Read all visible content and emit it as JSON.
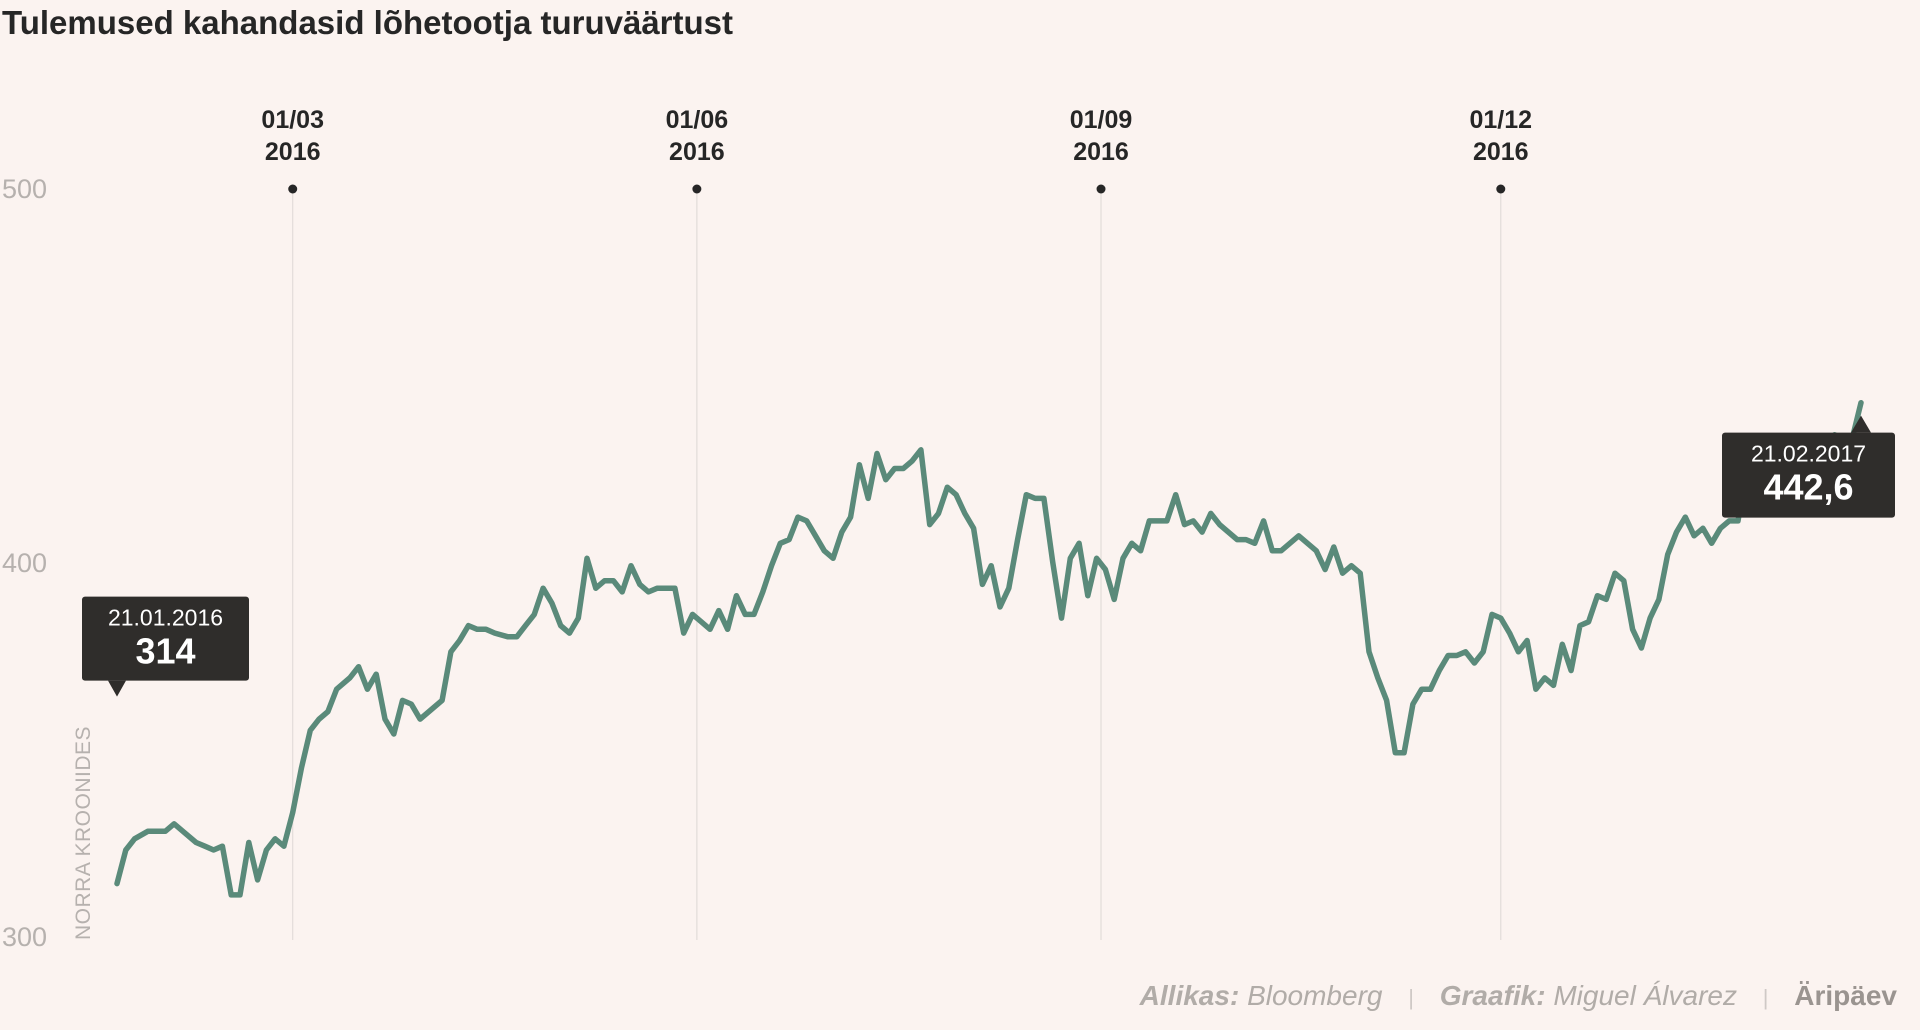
{
  "title": "Tulemused kahandasid lõhetootja turuväärtust",
  "footer": {
    "source_label": "Allikas:",
    "source_value": "Bloomberg",
    "graphic_label": "Graafik:",
    "graphic_value": "Miguel Álvarez",
    "brand": "Äripäev"
  },
  "colors": {
    "background": "#fbf3f0",
    "line": "#5a8a7a",
    "callout": "#2f2d2b",
    "gridline": "#e2dcd9"
  },
  "chart_data": {
    "type": "line",
    "title": "Tulemused kahandasid lõhetootja turuväärtust",
    "xlabel": "",
    "ylabel": "NORRA KROONIDES",
    "ylim": [
      300,
      500
    ],
    "yticks": [
      {
        "value": 500,
        "label": "500"
      },
      {
        "value": 400,
        "label": "400"
      },
      {
        "value": 300,
        "label": "300"
      }
    ],
    "xticks": [
      {
        "date": "2016-03-01",
        "label_top": "01/03",
        "label_bottom": "2016"
      },
      {
        "date": "2016-06-01",
        "label_top": "01/06",
        "label_bottom": "2016"
      },
      {
        "date": "2016-09-01",
        "label_top": "01/09",
        "label_bottom": "2016"
      },
      {
        "date": "2016-12-01",
        "label_top": "01/12",
        "label_bottom": "2016"
      }
    ],
    "xlim": [
      "2016-01-21",
      "2017-02-21"
    ],
    "grid": "vertical at x ticks",
    "series": [
      {
        "values": [
          [
            "2016-01-21",
            314
          ],
          [
            "2016-01-23",
            323
          ],
          [
            "2016-01-25",
            326
          ],
          [
            "2016-01-28",
            328
          ],
          [
            "2016-02-01",
            328
          ],
          [
            "2016-02-03",
            330
          ],
          [
            "2016-02-05",
            328
          ],
          [
            "2016-02-08",
            325
          ],
          [
            "2016-02-10",
            324
          ],
          [
            "2016-02-12",
            323
          ],
          [
            "2016-02-14",
            324
          ],
          [
            "2016-02-16",
            311
          ],
          [
            "2016-02-18",
            311
          ],
          [
            "2016-02-20",
            325
          ],
          [
            "2016-02-22",
            315
          ],
          [
            "2016-02-24",
            323
          ],
          [
            "2016-02-26",
            326
          ],
          [
            "2016-02-28",
            324
          ],
          [
            "2016-03-01",
            333
          ],
          [
            "2016-03-03",
            345
          ],
          [
            "2016-03-05",
            355
          ],
          [
            "2016-03-07",
            358
          ],
          [
            "2016-03-09",
            360
          ],
          [
            "2016-03-11",
            366
          ],
          [
            "2016-03-14",
            369
          ],
          [
            "2016-03-16",
            372
          ],
          [
            "2016-03-18",
            366
          ],
          [
            "2016-03-20",
            370
          ],
          [
            "2016-03-22",
            358
          ],
          [
            "2016-03-24",
            354
          ],
          [
            "2016-03-26",
            363
          ],
          [
            "2016-03-28",
            362
          ],
          [
            "2016-03-30",
            358
          ],
          [
            "2016-04-01",
            360
          ],
          [
            "2016-04-04",
            363
          ],
          [
            "2016-04-06",
            376
          ],
          [
            "2016-04-08",
            379
          ],
          [
            "2016-04-10",
            383
          ],
          [
            "2016-04-12",
            382
          ],
          [
            "2016-04-14",
            382
          ],
          [
            "2016-04-16",
            381
          ],
          [
            "2016-04-19",
            380
          ],
          [
            "2016-04-21",
            380
          ],
          [
            "2016-04-23",
            383
          ],
          [
            "2016-04-25",
            386
          ],
          [
            "2016-04-27",
            393
          ],
          [
            "2016-04-29",
            389
          ],
          [
            "2016-05-01",
            383
          ],
          [
            "2016-05-03",
            381
          ],
          [
            "2016-05-05",
            385
          ],
          [
            "2016-05-07",
            401
          ],
          [
            "2016-05-09",
            393
          ],
          [
            "2016-05-11",
            395
          ],
          [
            "2016-05-13",
            395
          ],
          [
            "2016-05-15",
            392
          ],
          [
            "2016-05-17",
            399
          ],
          [
            "2016-05-19",
            394
          ],
          [
            "2016-05-21",
            392
          ],
          [
            "2016-05-23",
            393
          ],
          [
            "2016-05-25",
            393
          ],
          [
            "2016-05-27",
            393
          ],
          [
            "2016-05-29",
            381
          ],
          [
            "2016-05-31",
            386
          ],
          [
            "2016-06-02",
            384
          ],
          [
            "2016-06-04",
            382
          ],
          [
            "2016-06-06",
            387
          ],
          [
            "2016-06-08",
            382
          ],
          [
            "2016-06-10",
            391
          ],
          [
            "2016-06-12",
            386
          ],
          [
            "2016-06-14",
            386
          ],
          [
            "2016-06-16",
            392
          ],
          [
            "2016-06-18",
            399
          ],
          [
            "2016-06-20",
            405
          ],
          [
            "2016-06-22",
            406
          ],
          [
            "2016-06-24",
            412
          ],
          [
            "2016-06-26",
            411
          ],
          [
            "2016-06-28",
            407
          ],
          [
            "2016-06-30",
            403
          ],
          [
            "2016-07-02",
            401
          ],
          [
            "2016-07-04",
            408
          ],
          [
            "2016-07-06",
            412
          ],
          [
            "2016-07-08",
            426
          ],
          [
            "2016-07-10",
            417
          ],
          [
            "2016-07-12",
            429
          ],
          [
            "2016-07-14",
            422
          ],
          [
            "2016-07-16",
            425
          ],
          [
            "2016-07-18",
            425
          ],
          [
            "2016-07-20",
            427
          ],
          [
            "2016-07-22",
            430
          ],
          [
            "2016-07-24",
            410
          ],
          [
            "2016-07-26",
            413
          ],
          [
            "2016-07-28",
            420
          ],
          [
            "2016-07-30",
            418
          ],
          [
            "2016-08-01",
            413
          ],
          [
            "2016-08-03",
            409
          ],
          [
            "2016-08-05",
            394
          ],
          [
            "2016-08-07",
            399
          ],
          [
            "2016-08-09",
            388
          ],
          [
            "2016-08-11",
            393
          ],
          [
            "2016-08-13",
            406
          ],
          [
            "2016-08-15",
            418
          ],
          [
            "2016-08-17",
            417
          ],
          [
            "2016-08-19",
            417
          ],
          [
            "2016-08-21",
            400
          ],
          [
            "2016-08-23",
            385
          ],
          [
            "2016-08-25",
            401
          ],
          [
            "2016-08-27",
            405
          ],
          [
            "2016-08-29",
            391
          ],
          [
            "2016-08-31",
            401
          ],
          [
            "2016-09-02",
            398
          ],
          [
            "2016-09-04",
            390
          ],
          [
            "2016-09-06",
            401
          ],
          [
            "2016-09-08",
            405
          ],
          [
            "2016-09-10",
            403
          ],
          [
            "2016-09-12",
            411
          ],
          [
            "2016-09-14",
            411
          ],
          [
            "2016-09-16",
            411
          ],
          [
            "2016-09-18",
            418
          ],
          [
            "2016-09-20",
            410
          ],
          [
            "2016-09-22",
            411
          ],
          [
            "2016-09-24",
            408
          ],
          [
            "2016-09-26",
            413
          ],
          [
            "2016-09-28",
            410
          ],
          [
            "2016-09-30",
            408
          ],
          [
            "2016-10-02",
            406
          ],
          [
            "2016-10-04",
            406
          ],
          [
            "2016-10-06",
            405
          ],
          [
            "2016-10-08",
            411
          ],
          [
            "2016-10-10",
            403
          ],
          [
            "2016-10-12",
            403
          ],
          [
            "2016-10-14",
            405
          ],
          [
            "2016-10-16",
            407
          ],
          [
            "2016-10-18",
            405
          ],
          [
            "2016-10-20",
            403
          ],
          [
            "2016-10-22",
            398
          ],
          [
            "2016-10-24",
            404
          ],
          [
            "2016-10-26",
            397
          ],
          [
            "2016-10-28",
            399
          ],
          [
            "2016-10-30",
            397
          ],
          [
            "2016-11-01",
            376
          ],
          [
            "2016-11-03",
            369
          ],
          [
            "2016-11-05",
            363
          ],
          [
            "2016-11-07",
            349
          ],
          [
            "2016-11-09",
            349
          ],
          [
            "2016-11-11",
            362
          ],
          [
            "2016-11-13",
            366
          ],
          [
            "2016-11-15",
            366
          ],
          [
            "2016-11-17",
            371
          ],
          [
            "2016-11-19",
            375
          ],
          [
            "2016-11-21",
            375
          ],
          [
            "2016-11-23",
            376
          ],
          [
            "2016-11-25",
            373
          ],
          [
            "2016-11-27",
            376
          ],
          [
            "2016-11-29",
            386
          ],
          [
            "2016-12-01",
            385
          ],
          [
            "2016-12-03",
            381
          ],
          [
            "2016-12-05",
            376
          ],
          [
            "2016-12-07",
            379
          ],
          [
            "2016-12-09",
            366
          ],
          [
            "2016-12-11",
            369
          ],
          [
            "2016-12-13",
            367
          ],
          [
            "2016-12-15",
            378
          ],
          [
            "2016-12-17",
            371
          ],
          [
            "2016-12-19",
            383
          ],
          [
            "2016-12-21",
            384
          ],
          [
            "2016-12-23",
            391
          ],
          [
            "2016-12-25",
            390
          ],
          [
            "2016-12-27",
            397
          ],
          [
            "2016-12-29",
            395
          ],
          [
            "2016-12-31",
            382
          ],
          [
            "2017-01-02",
            377
          ],
          [
            "2017-01-04",
            385
          ],
          [
            "2017-01-06",
            390
          ],
          [
            "2017-01-08",
            402
          ],
          [
            "2017-01-10",
            408
          ],
          [
            "2017-01-12",
            412
          ],
          [
            "2017-01-14",
            407
          ],
          [
            "2017-01-16",
            409
          ],
          [
            "2017-01-18",
            405
          ],
          [
            "2017-01-20",
            409
          ],
          [
            "2017-01-22",
            411
          ],
          [
            "2017-01-24",
            411
          ],
          [
            "2017-01-26",
            425
          ],
          [
            "2017-01-28",
            426
          ],
          [
            "2017-01-30",
            416
          ],
          [
            "2017-02-01",
            418
          ],
          [
            "2017-02-03",
            420
          ],
          [
            "2017-02-05",
            422
          ],
          [
            "2017-02-07",
            423
          ],
          [
            "2017-02-09",
            421
          ],
          [
            "2017-02-11",
            429
          ],
          [
            "2017-02-13",
            430
          ],
          [
            "2017-02-15",
            434
          ],
          [
            "2017-02-17",
            433
          ],
          [
            "2017-02-19",
            433
          ],
          [
            "2017-02-21",
            442.6
          ]
        ]
      }
    ],
    "callouts": [
      {
        "date_label": "21.01.2016",
        "value_label": "314"
      },
      {
        "date_label": "21.02.2017",
        "value_label": "442,6"
      }
    ]
  }
}
